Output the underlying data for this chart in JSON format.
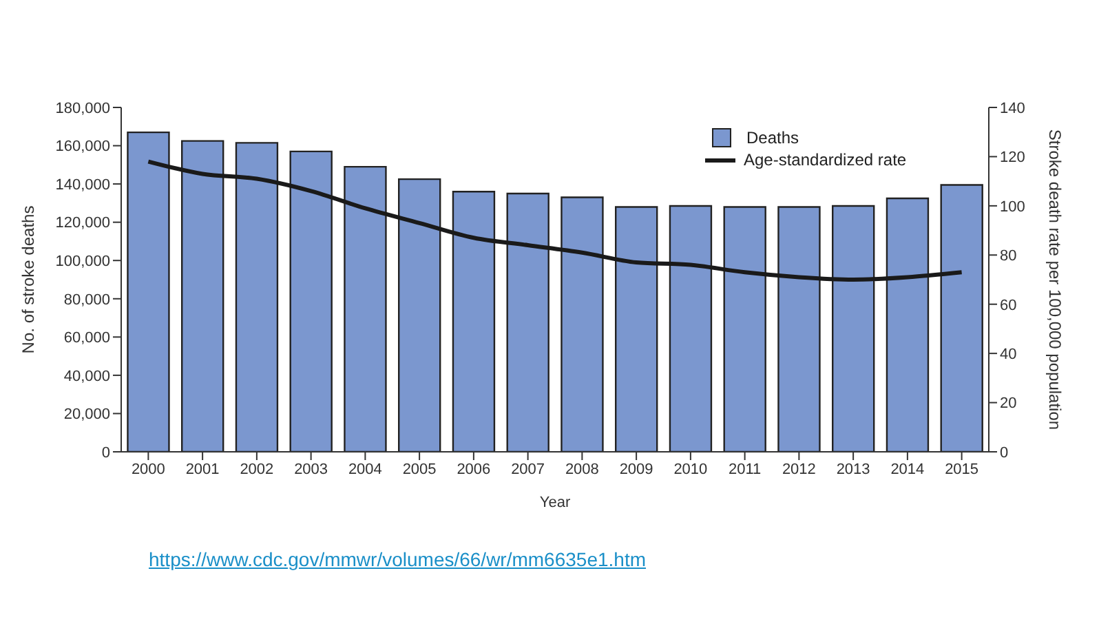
{
  "chart_data": {
    "type": "bar",
    "xlabel": "Year",
    "ylabel": "No. of stroke deaths",
    "y2label": "Stroke death rate per 100,000 population",
    "categories": [
      "2000",
      "2001",
      "2002",
      "2003",
      "2004",
      "2005",
      "2006",
      "2007",
      "2008",
      "2009",
      "2010",
      "2011",
      "2012",
      "2013",
      "2014",
      "2015"
    ],
    "series": [
      {
        "name": "Deaths",
        "color": "#7b97cf",
        "values": [
          167000,
          162500,
          161500,
          157000,
          149000,
          142500,
          136000,
          135000,
          133000,
          128000,
          128500,
          128000,
          128000,
          128500,
          132500,
          139500
        ]
      },
      {
        "name": "Age-standardized rate",
        "type": "line",
        "axis": "y2",
        "color": "#1a1a1a",
        "values": [
          118,
          113,
          111,
          106,
          99,
          93,
          87,
          84,
          81,
          77,
          76,
          73,
          71,
          70,
          71,
          73
        ]
      }
    ],
    "ylim": [
      0,
      180000
    ],
    "yticks": [
      {
        "value": 0,
        "label": "0"
      },
      {
        "value": 20000,
        "label": "20,000"
      },
      {
        "value": 40000,
        "label": "40,000"
      },
      {
        "value": 60000,
        "label": "60,000"
      },
      {
        "value": 80000,
        "label": "80,000"
      },
      {
        "value": 100000,
        "label": "100,000"
      },
      {
        "value": 120000,
        "label": "120,000"
      },
      {
        "value": 140000,
        "label": "140,000"
      },
      {
        "value": 160000,
        "label": "160,000"
      },
      {
        "value": 180000,
        "label": "180,000"
      }
    ],
    "y2lim": [
      0,
      140
    ],
    "y2ticks": [
      0,
      20,
      40,
      60,
      80,
      100,
      120,
      140
    ],
    "legend": "top right",
    "grid": false,
    "marker": "none",
    "line_style": "solid",
    "annotations": [
      "https://www.cdc.gov/mmwr/volumes/66/wr/mm6635e1.htm"
    ]
  }
}
